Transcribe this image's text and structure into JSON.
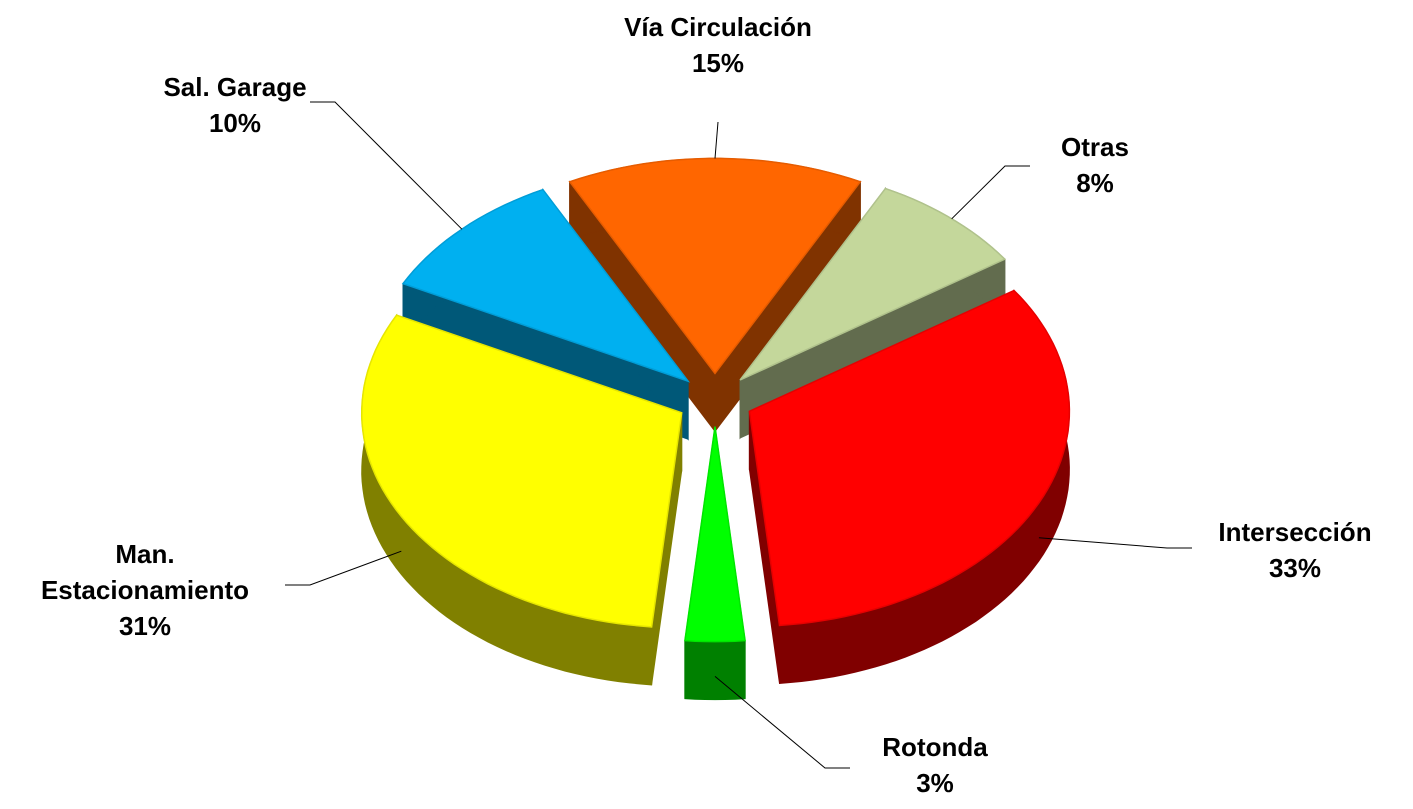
{
  "chart_data": {
    "type": "pie3d",
    "categories": [
      "Otras",
      "Intersección",
      "Rotonda",
      "Man. Estacionamiento",
      "Sal. Garage",
      "Vía Circulación"
    ],
    "values": [
      8,
      33,
      3,
      31,
      10,
      15
    ],
    "value_labels": [
      "8%",
      "33%",
      "3%",
      "31%",
      "10%",
      "15%"
    ],
    "colors": [
      "#c4d79b",
      "#ff0000",
      "#00ff00",
      "#ffff00",
      "#00b0f0",
      "#ff6600"
    ]
  }
}
